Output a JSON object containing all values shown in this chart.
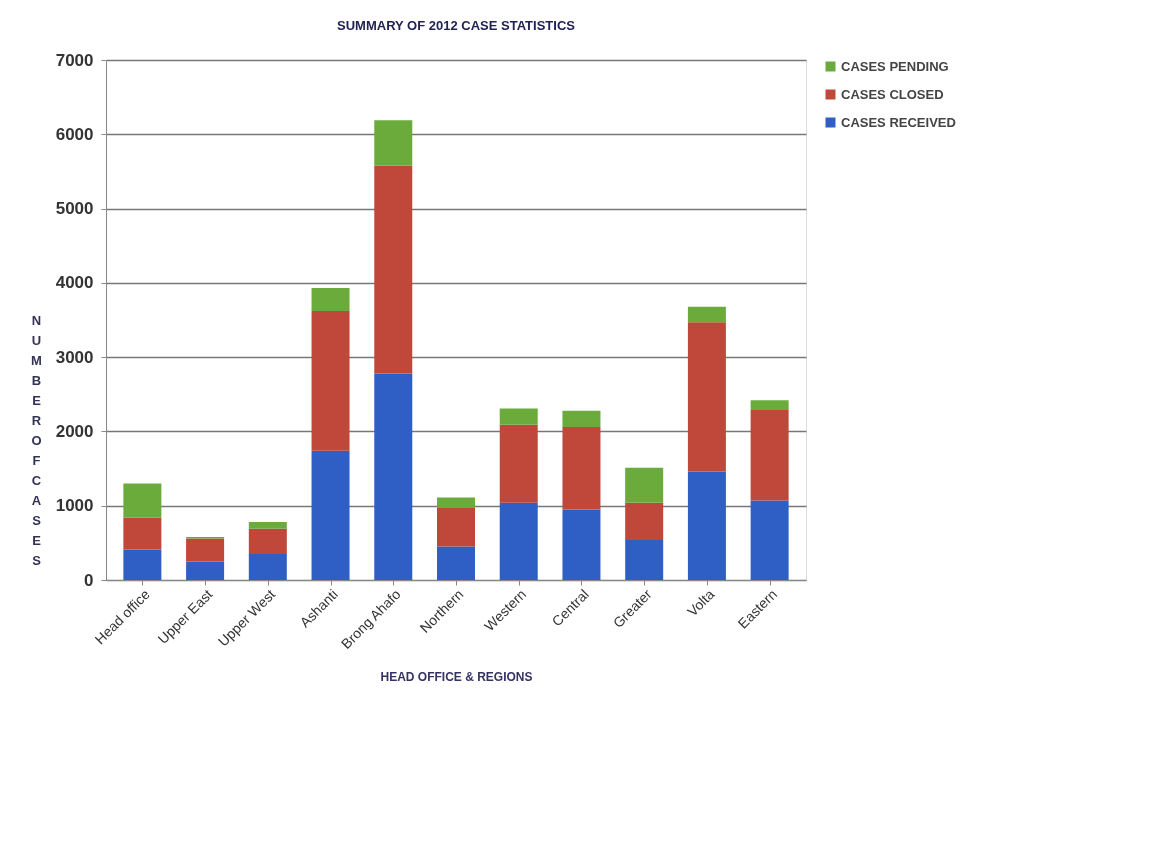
{
  "chart_data": {
    "type": "bar",
    "title": "SUMMARY OF 2012 CASE STATISTICS",
    "xlabel": "HEAD OFFICE & REGIONS",
    "ylabel": "NUMBER OF CASES",
    "categories": [
      "Head office",
      "Upper East",
      "Upper West",
      "Ashanti",
      "Brong Ahafo",
      "Northern",
      "Western",
      "Central",
      "Greater",
      "Volta",
      "Eastern"
    ],
    "stacked": true,
    "series": [
      {
        "name": "CASES RECEIVED",
        "color": "#2f5fc4",
        "values": [
          410,
          250,
          350,
          1740,
          2780,
          450,
          1040,
          950,
          540,
          1460,
          1070
        ]
      },
      {
        "name": "CASES CLOSED",
        "color": "#c0483a",
        "values": [
          430,
          310,
          340,
          1880,
          2800,
          520,
          1050,
          1110,
          500,
          2010,
          1220
        ]
      },
      {
        "name": "CASES PENDING",
        "color": "#6aab3c",
        "values": [
          460,
          20,
          90,
          310,
          610,
          140,
          220,
          220,
          470,
          210,
          130
        ]
      }
    ],
    "ylim": [
      0,
      7000
    ],
    "yticks": [
      0,
      1000,
      2000,
      3000,
      4000,
      5000,
      6000,
      7000
    ],
    "grid": "y",
    "legend": "right"
  }
}
